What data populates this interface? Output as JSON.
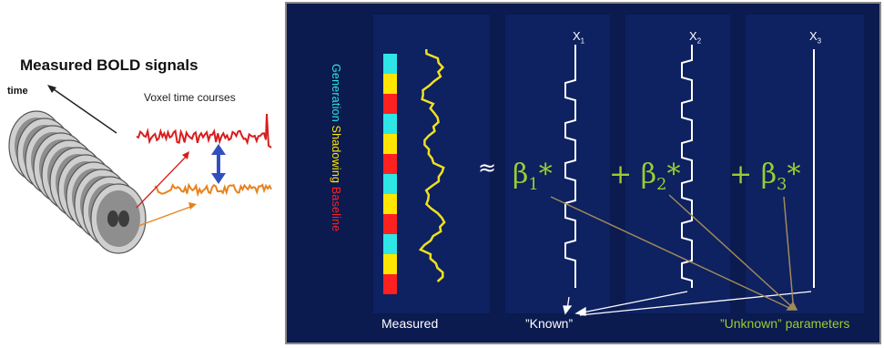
{
  "left": {
    "title": "Measured BOLD signals",
    "time_label": "time",
    "voxel_label": "Voxel time courses"
  },
  "right": {
    "legend": {
      "generation": "Generation",
      "shadowing": "Shadowing",
      "baseline": "Baseline"
    },
    "approx": "≈",
    "regressors": [
      {
        "label": "X",
        "sub": "1"
      },
      {
        "label": "X",
        "sub": "2"
      },
      {
        "label": "X",
        "sub": "3"
      }
    ],
    "betas": [
      {
        "prefix": "",
        "symbol": "β",
        "sub": "1",
        "suffix": "*"
      },
      {
        "prefix": "+ ",
        "symbol": "β",
        "sub": "2",
        "suffix": "*"
      },
      {
        "prefix": "+ ",
        "symbol": "β",
        "sub": "3",
        "suffix": "*"
      }
    ],
    "measured_label": "Measured",
    "known_label": "”Known”",
    "unknown_label": "”Unknown” parameters"
  },
  "colors": {
    "panel_bg": "#0b1a4f",
    "generation": "#2ee6e6",
    "shadowing": "#ffe600",
    "baseline": "#ff2020",
    "beta": "#9acd32",
    "arrow": "#a08a5a"
  }
}
